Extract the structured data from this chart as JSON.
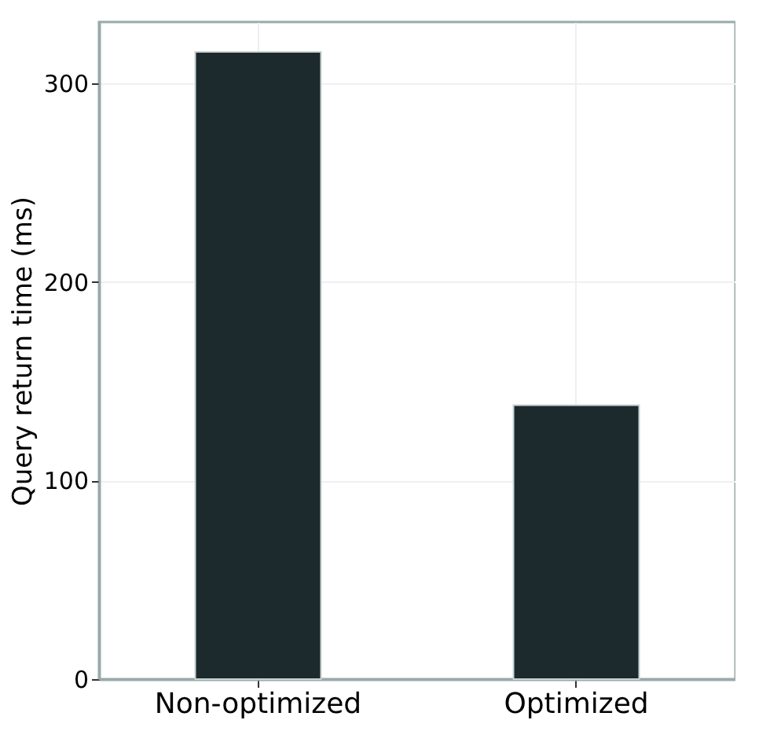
{
  "chart_data": {
    "type": "bar",
    "ylabel": "Query return time (ms)",
    "categories": [
      "Non-optimized",
      "Optimized"
    ],
    "values": [
      316,
      138
    ],
    "color": "#1c2a2e",
    "ylim": [
      0,
      331
    ],
    "yticks": [
      0,
      100,
      200,
      300
    ],
    "grid": true
  }
}
